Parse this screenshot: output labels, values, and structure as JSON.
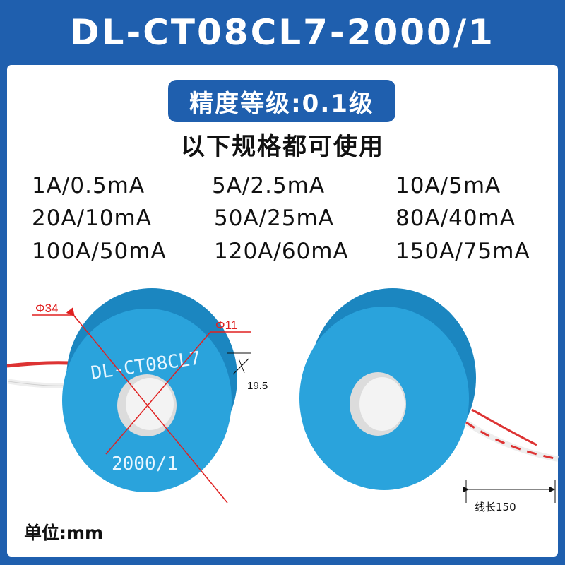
{
  "title": "DL-CT08CL7-2000/1",
  "badge": "精度等级:0.1级",
  "subtitle": "以下规格都可使用",
  "specs": [
    [
      "1A/0.5mA",
      "5A/2.5mA",
      "10A/5mA"
    ],
    [
      "20A/10mA",
      "50A/25mA",
      "80A/40mA"
    ],
    [
      "100A/50mA",
      "120A/60mA",
      "150A/75mA"
    ]
  ],
  "drawing": {
    "outer_dia": "Φ34",
    "inner_dia": "Φ11",
    "thickness": "19.5",
    "ring_text_top": "DL-CT08CL7",
    "ring_text_bottom": "2000/1",
    "lead_length": "线长150"
  },
  "unit": "单位:mm",
  "colors": {
    "brand_blue": "#1f5fae",
    "ring_blue": "#2aa3dc",
    "dim_red": "#e02020"
  }
}
